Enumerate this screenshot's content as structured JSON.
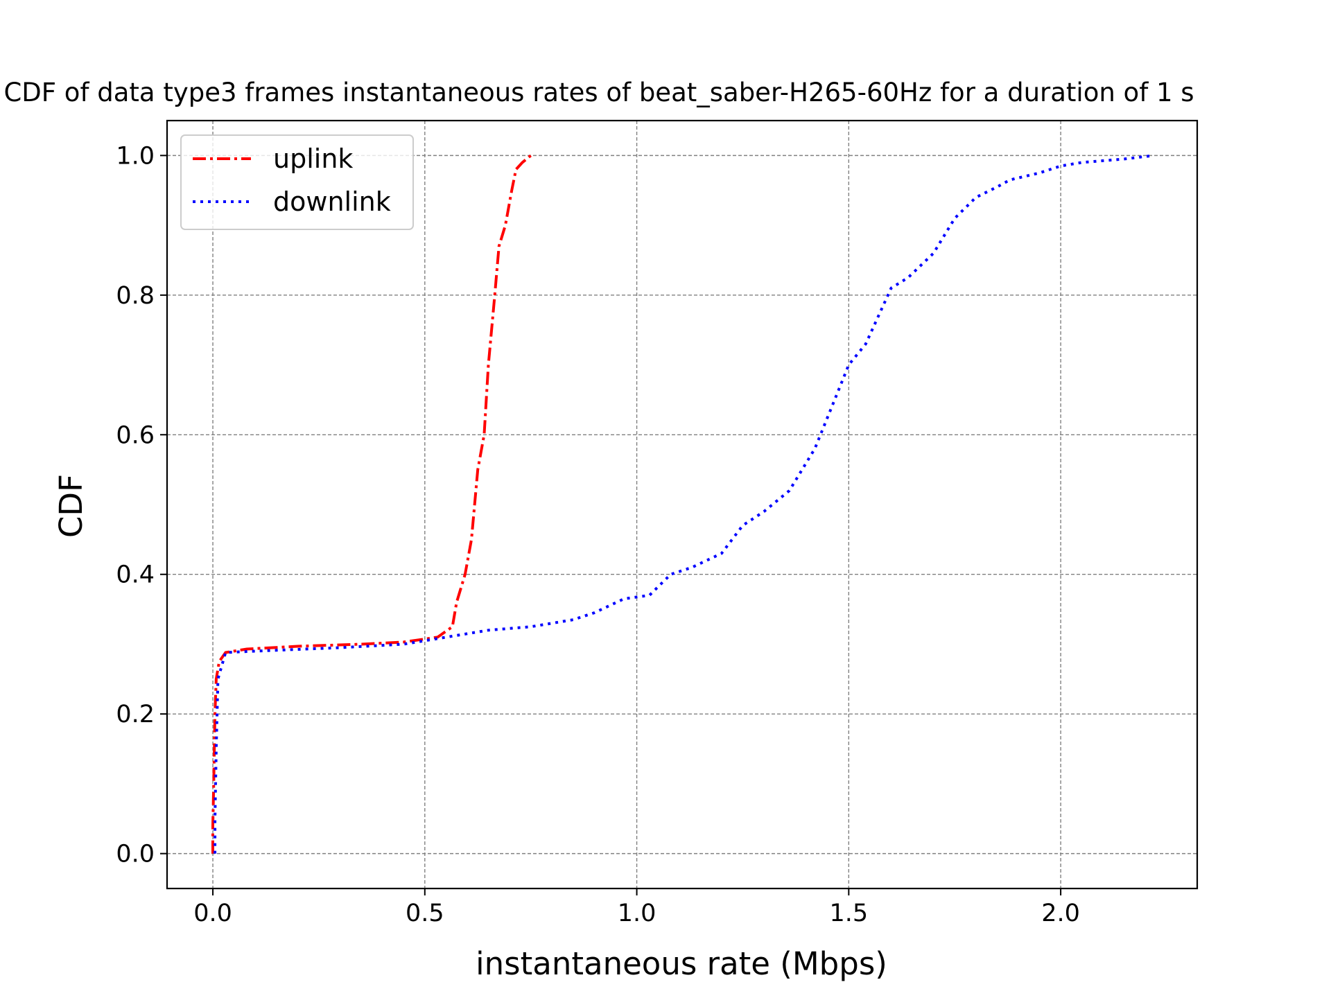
{
  "chart_data": {
    "type": "line",
    "title": "CDF of data type3 frames instantaneous rates of beat_saber-H265-60Hz for a duration of 1 s",
    "xlabel": "instantaneous rate (Mbps)",
    "ylabel": "CDF",
    "xlim": [
      -0.108,
      2.322
    ],
    "ylim": [
      -0.05,
      1.05
    ],
    "xticks": [
      0.0,
      0.5,
      1.0,
      1.5,
      2.0
    ],
    "xtick_labels": [
      "0.0",
      "0.5",
      "1.0",
      "1.5",
      "2.0"
    ],
    "yticks": [
      0.0,
      0.2,
      0.4,
      0.6,
      0.8,
      1.0
    ],
    "ytick_labels": [
      "0.0",
      "0.2",
      "0.4",
      "0.6",
      "0.8",
      "1.0"
    ],
    "grid": true,
    "legend_position": "top-left",
    "series": [
      {
        "name": "uplink",
        "color": "#ff0000",
        "style": "dashdot",
        "points": [
          [
            0.0,
            0.0
          ],
          [
            0.0,
            0.04
          ],
          [
            0.002,
            0.1
          ],
          [
            0.005,
            0.2
          ],
          [
            0.008,
            0.25
          ],
          [
            0.015,
            0.275
          ],
          [
            0.03,
            0.288
          ],
          [
            0.08,
            0.293
          ],
          [
            0.2,
            0.297
          ],
          [
            0.35,
            0.3
          ],
          [
            0.45,
            0.303
          ],
          [
            0.53,
            0.31
          ],
          [
            0.565,
            0.325
          ],
          [
            0.575,
            0.36
          ],
          [
            0.595,
            0.4
          ],
          [
            0.61,
            0.45
          ],
          [
            0.625,
            0.55
          ],
          [
            0.64,
            0.6
          ],
          [
            0.65,
            0.7
          ],
          [
            0.665,
            0.8
          ],
          [
            0.675,
            0.87
          ],
          [
            0.69,
            0.9
          ],
          [
            0.705,
            0.95
          ],
          [
            0.715,
            0.98
          ],
          [
            0.73,
            0.99
          ],
          [
            0.75,
            1.0
          ]
        ]
      },
      {
        "name": "downlink",
        "color": "#0000ff",
        "style": "dotted",
        "points": [
          [
            0.005,
            0.0
          ],
          [
            0.005,
            0.05
          ],
          [
            0.008,
            0.15
          ],
          [
            0.012,
            0.25
          ],
          [
            0.03,
            0.288
          ],
          [
            0.1,
            0.29
          ],
          [
            0.3,
            0.295
          ],
          [
            0.45,
            0.3
          ],
          [
            0.55,
            0.31
          ],
          [
            0.65,
            0.32
          ],
          [
            0.75,
            0.325
          ],
          [
            0.85,
            0.335
          ],
          [
            0.9,
            0.345
          ],
          [
            0.97,
            0.365
          ],
          [
            1.03,
            0.37
          ],
          [
            1.08,
            0.4
          ],
          [
            1.13,
            0.41
          ],
          [
            1.2,
            0.43
          ],
          [
            1.25,
            0.47
          ],
          [
            1.3,
            0.49
          ],
          [
            1.36,
            0.52
          ],
          [
            1.42,
            0.58
          ],
          [
            1.46,
            0.64
          ],
          [
            1.5,
            0.7
          ],
          [
            1.54,
            0.73
          ],
          [
            1.6,
            0.81
          ],
          [
            1.64,
            0.825
          ],
          [
            1.7,
            0.86
          ],
          [
            1.75,
            0.91
          ],
          [
            1.8,
            0.94
          ],
          [
            1.85,
            0.955
          ],
          [
            1.88,
            0.965
          ],
          [
            1.95,
            0.975
          ],
          [
            2.0,
            0.985
          ],
          [
            2.05,
            0.99
          ],
          [
            2.15,
            0.995
          ],
          [
            2.22,
            1.0
          ]
        ]
      }
    ]
  }
}
